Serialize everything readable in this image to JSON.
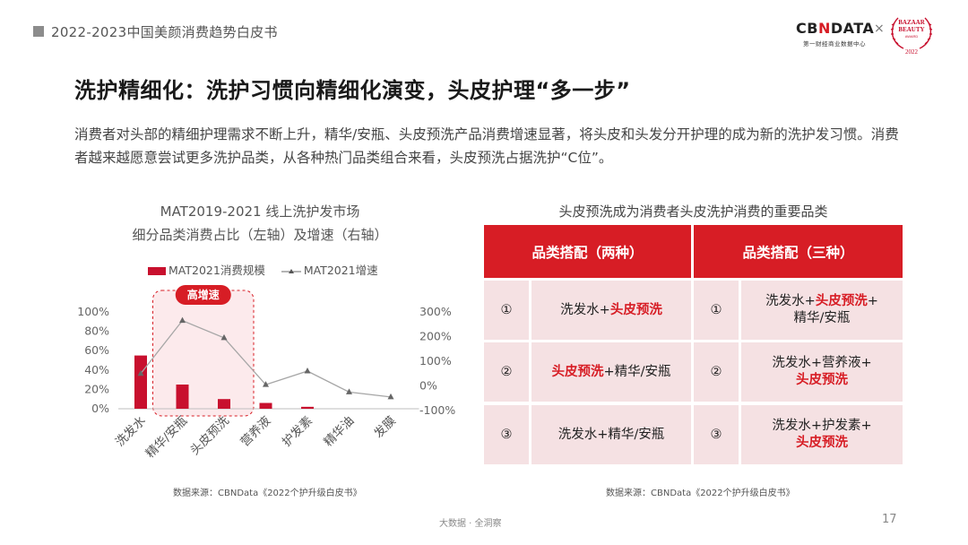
{
  "header": {
    "report_title": "2022-2023中国美颜消费趋势白皮书",
    "brand_pre": "CB",
    "brand_mid": "N",
    "brand_post": "DATA",
    "brand_subtitle": "第一财经商业数据中心",
    "times_sign": "×",
    "partner_logo": [
      "BAZAAR",
      "BEAUTY",
      "AWARD",
      "2022"
    ]
  },
  "headline": "洗护精细化：洗护习惯向精细化演变，头皮护理“多一步”",
  "paragraph": "消费者对头部的精细护理需求不断上升，精华/安瓶、头皮预洗产品消费增速显著，将头皮和头发分开护理的成为新的洗护发习惯。消费者越来越愿意尝试更多洗护品类，从各种热门品类组合来看，头皮预洗占据洗护“C位”。",
  "chart_data": {
    "type": "bar",
    "title_line1": "MAT2019-2021 线上洗护发市场",
    "title_line2": "细分品类消费占比（左轴）及增速（右轴）",
    "categories": [
      "洗发水",
      "精华/安瓶",
      "头皮预洗",
      "营养液",
      "护发素",
      "精华油",
      "发膜"
    ],
    "series": [
      {
        "name": "MAT2021消费规模",
        "type": "bar",
        "axis": "left",
        "color": "#c8102e",
        "values": [
          55,
          25,
          10,
          6,
          2,
          0,
          0
        ]
      },
      {
        "name": "MAT2021增速",
        "type": "line",
        "axis": "right",
        "color": "#999999",
        "values": [
          50,
          265,
          195,
          5,
          60,
          -25,
          -45
        ]
      }
    ],
    "y_left": {
      "ticks": [
        "0%",
        "20%",
        "40%",
        "60%",
        "80%",
        "100%"
      ],
      "ylim": [
        0,
        100
      ]
    },
    "y_right": {
      "ticks": [
        "-100%",
        "0%",
        "100%",
        "200%",
        "300%"
      ],
      "ylim": [
        -100,
        300
      ]
    },
    "annotation": "高增速",
    "legend_position": "top",
    "grid": false
  },
  "chart_source": "数据来源：CBNData《2022个护升级白皮书》",
  "table": {
    "title": "头皮预洗成为消费者头皮洗护消费的重要品类",
    "headers": [
      "品类搭配（两种）",
      "品类搭配（三种）"
    ],
    "rows": [
      {
        "num1": "①",
        "two": [
          "洗发水+",
          "头皮预洗",
          ""
        ],
        "num2": "①",
        "three_line1": [
          "洗发水+",
          "头皮预洗",
          "+"
        ],
        "three_line2": [
          "精华/安瓶",
          ""
        ]
      },
      {
        "num1": "②",
        "two": [
          "",
          "头皮预洗",
          "+精华/安瓶"
        ],
        "num2": "②",
        "three_line1": [
          "洗发水+营养液+",
          "",
          ""
        ],
        "three_line2": [
          "",
          "头皮预洗"
        ]
      },
      {
        "num1": "③",
        "two": [
          "洗发水+精华/安瓶",
          "",
          ""
        ],
        "num2": "③",
        "three_line1": [
          "洗发水+护发素+",
          "",
          ""
        ],
        "three_line2": [
          "",
          "头皮预洗"
        ]
      }
    ],
    "source": "数据来源：CBNData《2022个护升级白皮书》"
  },
  "footer": {
    "slogan": "大数据 · 全洞察",
    "page_number": "17"
  }
}
